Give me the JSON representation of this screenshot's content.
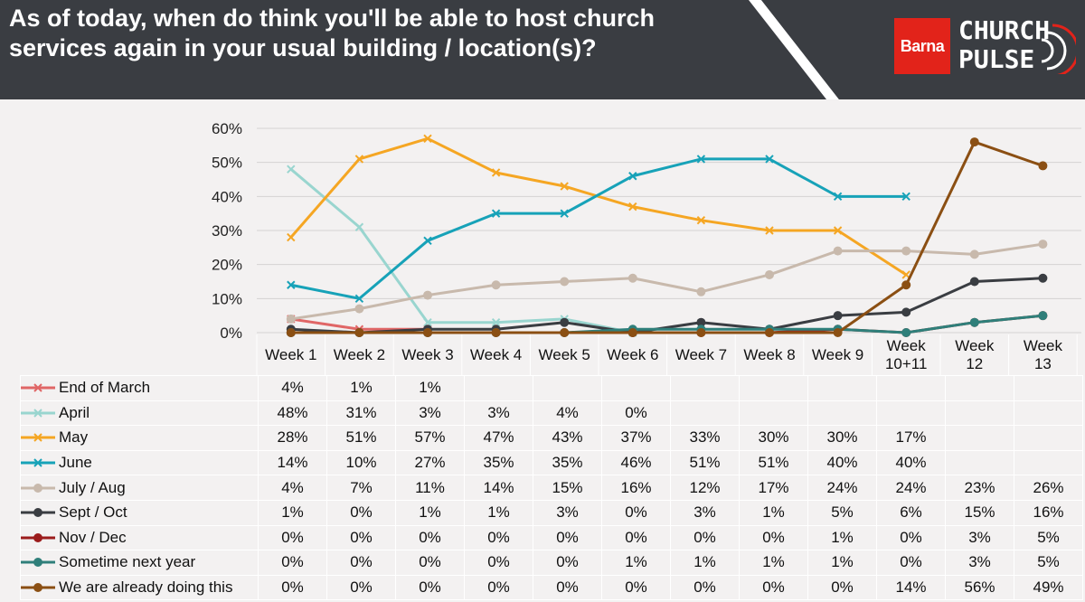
{
  "header": {
    "title": "As of today, when do think you'll be able to host church services again in your usual building / location(s)?",
    "logo_barna": "Barna",
    "logo_church": "CHURCH",
    "logo_pulse": "PULSE"
  },
  "chart_data": {
    "type": "line",
    "title": "As of today, when do think you'll be able to host church services again in your usual building / location(s)?",
    "categories": [
      "Week 1",
      "Week 2",
      "Week 3",
      "Week 4",
      "Week 5",
      "Week 6",
      "Week 7",
      "Week 8",
      "Week 9",
      "Week 10+11",
      "Week 12",
      "Week 13"
    ],
    "category_lines": [
      [
        "Week 1"
      ],
      [
        "Week 2"
      ],
      [
        "Week 3"
      ],
      [
        "Week 4"
      ],
      [
        "Week 5"
      ],
      [
        "Week 6"
      ],
      [
        "Week 7"
      ],
      [
        "Week 8"
      ],
      [
        "Week 9"
      ],
      [
        "Week",
        "10+11"
      ],
      [
        "Week",
        "12"
      ],
      [
        "Week",
        "13"
      ]
    ],
    "yticks": [
      "0%",
      "10%",
      "20%",
      "30%",
      "40%",
      "50%",
      "60%"
    ],
    "ylim": [
      0,
      60
    ],
    "grid": true,
    "series": [
      {
        "name": "End of March",
        "color": "#e06666",
        "marker": "x",
        "values": [
          4,
          1,
          1,
          null,
          null,
          null,
          null,
          null,
          null,
          null,
          null,
          null
        ]
      },
      {
        "name": "April",
        "color": "#99d5cf",
        "marker": "x",
        "values": [
          48,
          31,
          3,
          3,
          4,
          0,
          null,
          null,
          null,
          null,
          null,
          null
        ]
      },
      {
        "name": "May",
        "color": "#f5a623",
        "marker": "x",
        "values": [
          28,
          51,
          57,
          47,
          43,
          37,
          33,
          30,
          30,
          17,
          null,
          null
        ]
      },
      {
        "name": "June",
        "color": "#17a2b8",
        "marker": "x",
        "values": [
          14,
          10,
          27,
          35,
          35,
          46,
          51,
          51,
          40,
          40,
          null,
          null
        ]
      },
      {
        "name": "July / Aug",
        "color": "#c8b9ac",
        "marker": "o",
        "values": [
          4,
          7,
          11,
          14,
          15,
          16,
          12,
          17,
          24,
          24,
          23,
          26
        ]
      },
      {
        "name": "Sept / Oct",
        "color": "#3a3d42",
        "marker": "o",
        "values": [
          1,
          0,
          1,
          1,
          3,
          0,
          3,
          1,
          5,
          6,
          15,
          16
        ]
      },
      {
        "name": "Nov / Dec",
        "color": "#9b1b1b",
        "marker": "o",
        "values": [
          0,
          0,
          0,
          0,
          0,
          0,
          0,
          0,
          1,
          0,
          3,
          5
        ]
      },
      {
        "name": "Sometime next year",
        "color": "#2f7f7a",
        "marker": "o",
        "values": [
          0,
          0,
          0,
          0,
          0,
          1,
          1,
          1,
          1,
          0,
          3,
          5
        ]
      },
      {
        "name": "We are already doing this",
        "color": "#8b4f13",
        "marker": "o",
        "values": [
          0,
          0,
          0,
          0,
          0,
          0,
          0,
          0,
          0,
          14,
          56,
          49
        ]
      }
    ],
    "table": [
      [
        "4%",
        "1%",
        "1%",
        "",
        "",
        "",
        "",
        "",
        "",
        "",
        "",
        ""
      ],
      [
        "48%",
        "31%",
        "3%",
        "3%",
        "4%",
        "0%",
        "",
        "",
        "",
        "",
        "",
        ""
      ],
      [
        "28%",
        "51%",
        "57%",
        "47%",
        "43%",
        "37%",
        "33%",
        "30%",
        "30%",
        "17%",
        "",
        ""
      ],
      [
        "14%",
        "10%",
        "27%",
        "35%",
        "35%",
        "46%",
        "51%",
        "51%",
        "40%",
        "40%",
        "",
        ""
      ],
      [
        "4%",
        "7%",
        "11%",
        "14%",
        "15%",
        "16%",
        "12%",
        "17%",
        "24%",
        "24%",
        "23%",
        "26%"
      ],
      [
        "1%",
        "0%",
        "1%",
        "1%",
        "3%",
        "0%",
        "3%",
        "1%",
        "5%",
        "6%",
        "15%",
        "16%"
      ],
      [
        "0%",
        "0%",
        "0%",
        "0%",
        "0%",
        "0%",
        "0%",
        "0%",
        "1%",
        "0%",
        "3%",
        "5%"
      ],
      [
        "0%",
        "0%",
        "0%",
        "0%",
        "0%",
        "1%",
        "1%",
        "1%",
        "1%",
        "0%",
        "3%",
        "5%"
      ],
      [
        "0%",
        "0%",
        "0%",
        "0%",
        "0%",
        "0%",
        "0%",
        "0%",
        "0%",
        "14%",
        "56%",
        "49%"
      ]
    ]
  }
}
